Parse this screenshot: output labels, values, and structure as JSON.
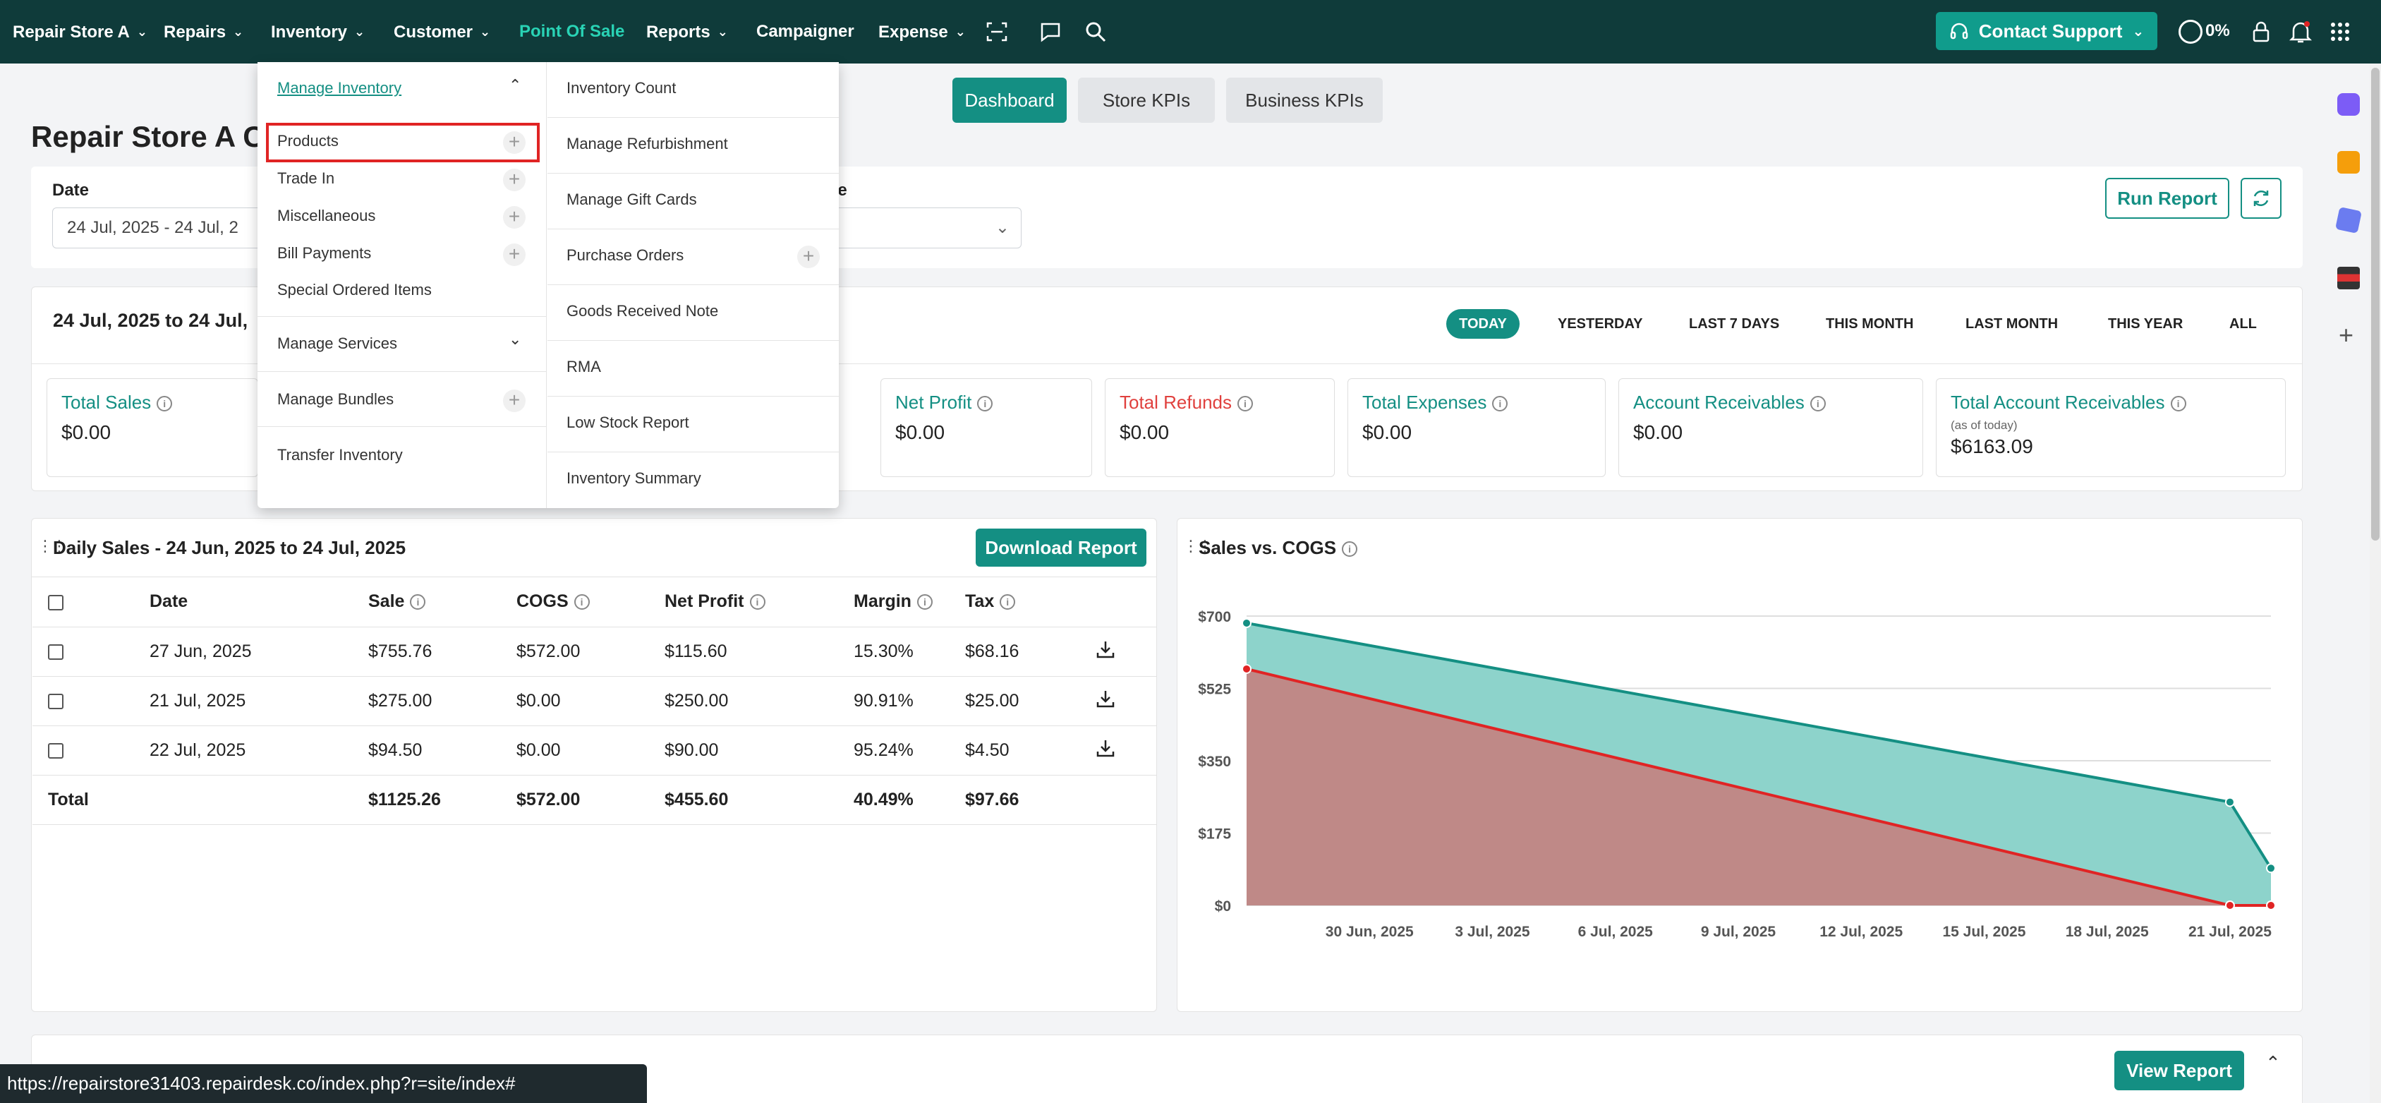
{
  "nav": {
    "store": "Repair Store A",
    "repairs": "Repairs",
    "inventory": "Inventory",
    "customer": "Customer",
    "pos": "Point Of Sale",
    "reports": "Reports",
    "campaigner": "Campaigner",
    "expense": "Expense",
    "support": "Contact Support",
    "progress": "0%"
  },
  "tabs": [
    "Dashboard",
    "Store KPIs",
    "Business KPIs"
  ],
  "page": {
    "title": "Repair Store A C",
    "date_label": "Date",
    "date_value": "24 Jul, 2025 - 24 Jul, 2",
    "employee_label_frag": "ee",
    "run_report": "Run Report"
  },
  "summary": {
    "range_label": "24 Jul, 2025 to 24 Jul,",
    "ranges": [
      "TODAY",
      "YESTERDAY",
      "LAST 7 DAYS",
      "THIS MONTH",
      "LAST MONTH",
      "THIS YEAR",
      "ALL"
    ],
    "kpis": [
      {
        "title": "Total Sales",
        "value": "$0.00"
      },
      {
        "title": "Net Profit",
        "value": "$0.00"
      },
      {
        "title": "Total Refunds",
        "value": "$0.00"
      },
      {
        "title": "Total Expenses",
        "value": "$0.00"
      },
      {
        "title": "Account Receivables",
        "value": "$0.00"
      },
      {
        "title": "Total Account Receivables",
        "sub": "(as of today)",
        "value": "$6163.09"
      }
    ]
  },
  "daily": {
    "title": "Daily Sales - 24 Jun, 2025 to 24 Jul, 2025",
    "download": "Download Report",
    "headers": [
      "Date",
      "Sale",
      "COGS",
      "Net Profit",
      "Margin",
      "Tax"
    ],
    "rows": [
      [
        "27 Jun, 2025",
        "$755.76",
        "$572.00",
        "$115.60",
        "15.30%",
        "$68.16"
      ],
      [
        "21 Jul, 2025",
        "$275.00",
        "$0.00",
        "$250.00",
        "90.91%",
        "$25.00"
      ],
      [
        "22 Jul, 2025",
        "$94.50",
        "$0.00",
        "$90.00",
        "95.24%",
        "$4.50"
      ]
    ],
    "total": [
      "Total",
      "$1125.26",
      "$572.00",
      "$455.60",
      "40.49%",
      "$97.66"
    ]
  },
  "chart_data": {
    "type": "area",
    "title": "Sales vs. COGS",
    "x_ticks": [
      "30 Jun, 2025",
      "3 Jul, 2025",
      "6 Jul, 2025",
      "9 Jul, 2025",
      "12 Jul, 2025",
      "15 Jul, 2025",
      "18 Jul, 2025",
      "21 Jul, 2025"
    ],
    "y_ticks": [
      "$0",
      "$175",
      "$350",
      "$525",
      "$700"
    ],
    "ylim": [
      0,
      700
    ],
    "x": [
      "27 Jun, 2025",
      "21 Jul, 2025",
      "22 Jul, 2025"
    ],
    "series": [
      {
        "name": "",
        "color": "#148f83",
        "fill": "#8dd3cb",
        "values": [
          683,
          250,
          90
        ]
      },
      {
        "name": "",
        "color": "#e02424",
        "fill": "#bf8987",
        "values": [
          572,
          0,
          0
        ]
      }
    ]
  },
  "dropdown": {
    "manage_inventory": "Manage Inventory",
    "left_items": [
      "Products",
      "Trade In",
      "Miscellaneous",
      "Bill Payments",
      "Special Ordered Items"
    ],
    "manage_services": "Manage Services",
    "manage_bundles": "Manage Bundles",
    "transfer_inventory": "Transfer Inventory",
    "right_items": [
      "Inventory Count",
      "Manage Refurbishment",
      "Manage Gift Cards",
      "Purchase Orders",
      "Goods Received Note",
      "RMA",
      "Low Stock Report",
      "Inventory Summary"
    ]
  },
  "bottom": {
    "view_report": "View Report"
  },
  "status_url": "https://repairstore31403.repairdesk.co/index.php?r=site/index#"
}
